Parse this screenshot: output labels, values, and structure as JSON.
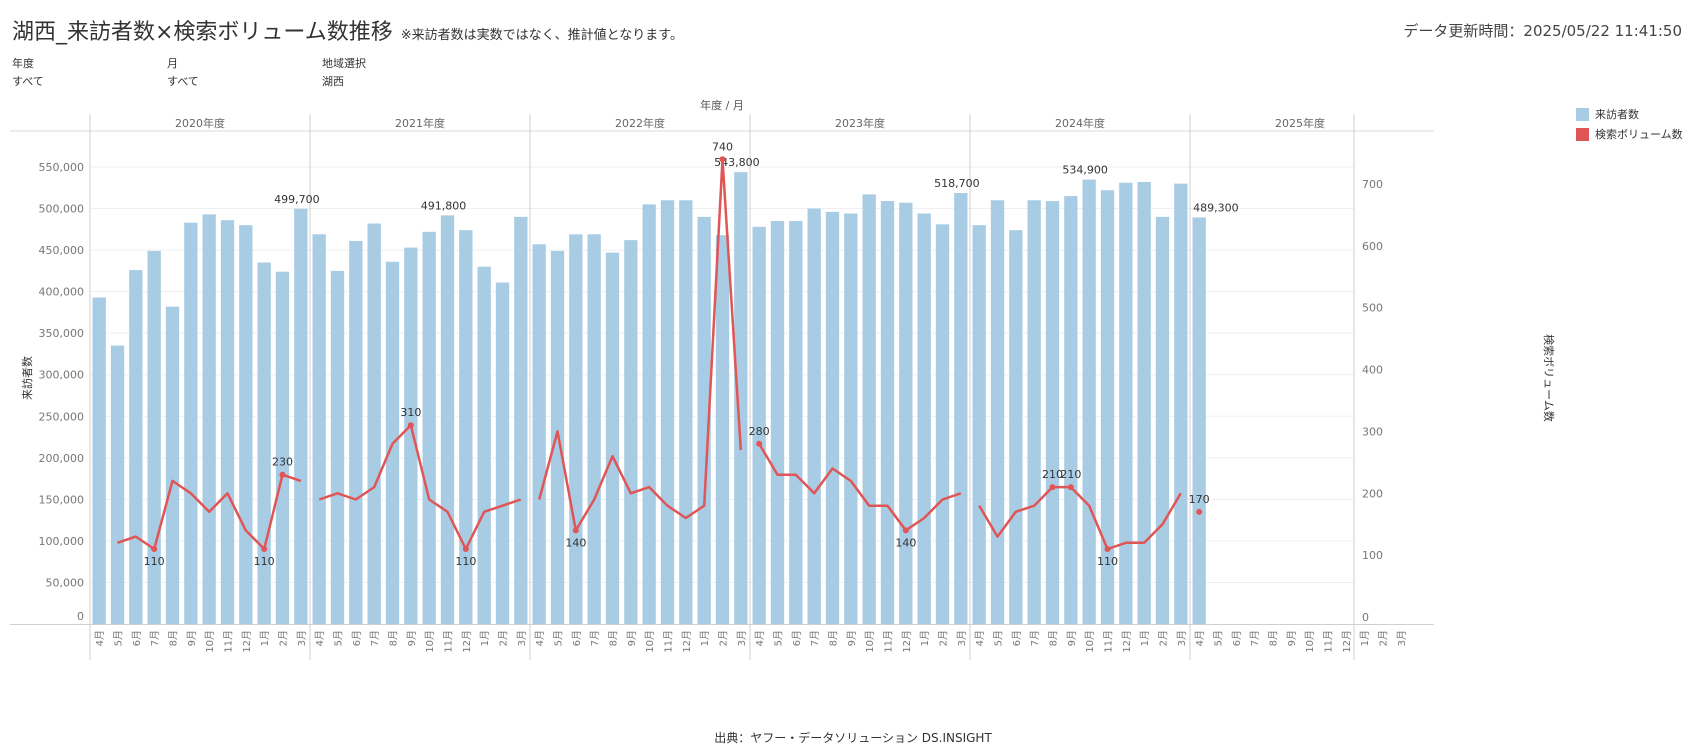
{
  "header": {
    "title": "湖西_来訪者数×検索ボリューム数推移",
    "note": "※来訪者数は実数ではなく、推計値となります。",
    "updated_label": "データ更新時間：",
    "updated_value": "2025/05/22 11:41:50"
  },
  "filters": [
    {
      "label": "年度",
      "value": "すべて"
    },
    {
      "label": "月",
      "value": "すべて"
    },
    {
      "label": "地域選択",
      "value": "湖西"
    }
  ],
  "source": "出典：ヤフー・データソリューション DS.INSIGHT",
  "colors": {
    "bar": "#a9cce5",
    "line": "#e05555"
  },
  "chart_data": {
    "type": "bar+line",
    "top_axis_title": "年度 / 月",
    "ylabel_left": "来訪者数",
    "ylabel_right": "検索ボリューム数",
    "ylim_left": [
      0,
      590000
    ],
    "ylim_right": [
      0,
      774
    ],
    "left_ticks": [
      "0",
      "50,000",
      "100,000",
      "150,000",
      "200,000",
      "250,000",
      "300,000",
      "350,000",
      "400,000",
      "450,000",
      "500,000",
      "550,000"
    ],
    "right_ticks": [
      "0",
      "100",
      "200",
      "300",
      "400",
      "500",
      "600",
      "700"
    ],
    "legend": [
      {
        "name": "来訪者数",
        "color": "#a9cce5"
      },
      {
        "name": "検索ボリューム数",
        "color": "#e05555"
      }
    ],
    "years": [
      "2020年度",
      "2021年度",
      "2022年度",
      "2023年度",
      "2024年度",
      "2025年度"
    ],
    "months": [
      "4月",
      "5月",
      "6月",
      "7月",
      "8月",
      "9月",
      "10月",
      "11月",
      "12月",
      "1月",
      "2月",
      "3月"
    ],
    "series": [
      {
        "name": "来訪者数",
        "values": [
          [
            393000,
            335000,
            426000,
            449000,
            382000,
            483000,
            493000,
            486000,
            480000,
            435000,
            424000,
            499700
          ],
          [
            469000,
            425000,
            461000,
            482000,
            436000,
            453000,
            472000,
            491800,
            474000,
            430000,
            411000,
            490000
          ],
          [
            457000,
            449000,
            469000,
            469000,
            447000,
            462000,
            505000,
            510000,
            510000,
            490000,
            468000,
            543800
          ],
          [
            478000,
            485000,
            485000,
            500000,
            496000,
            494000,
            517000,
            509000,
            507000,
            494000,
            481000,
            518700
          ],
          [
            480000,
            510000,
            474000,
            510000,
            509000,
            515000,
            534900,
            522000,
            531000,
            532000,
            490000,
            530000
          ],
          [
            489300,
            null,
            null,
            null,
            null,
            null,
            null,
            null,
            null,
            null,
            null,
            null
          ]
        ]
      },
      {
        "name": "検索ボリューム数",
        "values": [
          [
            null,
            120,
            130,
            110,
            220,
            200,
            170,
            200,
            140,
            110,
            230,
            220
          ],
          [
            190,
            200,
            190,
            210,
            280,
            310,
            190,
            170,
            110,
            170,
            180,
            190
          ],
          [
            190,
            300,
            140,
            190,
            260,
            200,
            210,
            180,
            160,
            180,
            740,
            270
          ],
          [
            280,
            230,
            230,
            200,
            240,
            220,
            180,
            180,
            140,
            160,
            190,
            200
          ],
          [
            180,
            130,
            170,
            180,
            210,
            210,
            180,
            110,
            120,
            120,
            150,
            200
          ],
          [
            170,
            null,
            null,
            null,
            null,
            null,
            null,
            null,
            null,
            null,
            null,
            null
          ]
        ]
      }
    ],
    "bar_labels": [
      {
        "year": 0,
        "month": 11,
        "text": "499,700"
      },
      {
        "year": 1,
        "month": 7,
        "text": "491,800"
      },
      {
        "year": 2,
        "month": 11,
        "text": "543,800"
      },
      {
        "year": 3,
        "month": 11,
        "text": "518,700"
      },
      {
        "year": 4,
        "month": 6,
        "text": "534,900"
      },
      {
        "year": 5,
        "month": 0,
        "text": "489,300"
      }
    ],
    "line_labels": [
      {
        "year": 0,
        "month": 3,
        "text": "110",
        "pos": "below"
      },
      {
        "year": 0,
        "month": 9,
        "text": "110",
        "pos": "below"
      },
      {
        "year": 0,
        "month": 10,
        "text": "230",
        "pos": "above"
      },
      {
        "year": 1,
        "month": 5,
        "text": "310",
        "pos": "above"
      },
      {
        "year": 1,
        "month": 8,
        "text": "110",
        "pos": "below"
      },
      {
        "year": 2,
        "month": 2,
        "text": "140",
        "pos": "below"
      },
      {
        "year": 2,
        "month": 10,
        "text": "740",
        "pos": "above"
      },
      {
        "year": 3,
        "month": 0,
        "text": "280",
        "pos": "above"
      },
      {
        "year": 3,
        "month": 8,
        "text": "140",
        "pos": "below"
      },
      {
        "year": 4,
        "month": 4,
        "text": "210",
        "pos": "above"
      },
      {
        "year": 4,
        "month": 5,
        "text": "210",
        "pos": "above"
      },
      {
        "year": 4,
        "month": 7,
        "text": "110",
        "pos": "below"
      },
      {
        "year": 5,
        "month": 0,
        "text": "170",
        "pos": "above"
      }
    ]
  }
}
